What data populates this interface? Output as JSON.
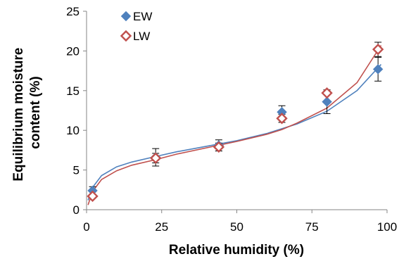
{
  "chart_data": {
    "type": "scatter",
    "xlabel": "Relative humidity (%)",
    "ylabel_lines": [
      "Equilibrium moisture",
      "content (%)"
    ],
    "xlim": [
      0,
      100
    ],
    "ylim": [
      0,
      25
    ],
    "x_ticks": [
      0,
      25,
      50,
      75,
      100
    ],
    "y_ticks": [
      0,
      5,
      10,
      15,
      20,
      25
    ],
    "grid": false,
    "legend_position": "top-left",
    "series": [
      {
        "name": "EW",
        "marker": "filled-diamond",
        "color": "#4f81bd",
        "points": [
          {
            "x": 2,
            "y": 2.4,
            "err": 0.5
          },
          {
            "x": 23,
            "y": 6.6,
            "err": 1.1
          },
          {
            "x": 44,
            "y": 8.1,
            "err": 0.7
          },
          {
            "x": 65,
            "y": 12.3,
            "err": 0.8
          },
          {
            "x": 80,
            "y": 13.6,
            "err": 1.5
          },
          {
            "x": 97,
            "y": 17.7,
            "err": 1.5
          }
        ],
        "fit": [
          [
            0.5,
            1.2
          ],
          [
            2,
            2.8
          ],
          [
            5,
            4.3
          ],
          [
            10,
            5.4
          ],
          [
            15,
            6.0
          ],
          [
            23,
            6.7
          ],
          [
            30,
            7.3
          ],
          [
            40,
            8.0
          ],
          [
            50,
            8.7
          ],
          [
            60,
            9.6
          ],
          [
            65,
            10.2
          ],
          [
            70,
            10.8
          ],
          [
            80,
            12.4
          ],
          [
            90,
            15.0
          ],
          [
            98,
            18.3
          ]
        ]
      },
      {
        "name": "LW",
        "marker": "open-diamond",
        "color": "#c0504d",
        "points": [
          {
            "x": 2,
            "y": 1.7,
            "err": 0
          },
          {
            "x": 23,
            "y": 6.5,
            "err": 0.6
          },
          {
            "x": 44,
            "y": 7.9,
            "err": 0.5
          },
          {
            "x": 65,
            "y": 11.5,
            "err": 0.5
          },
          {
            "x": 80,
            "y": 14.7,
            "err": 0
          },
          {
            "x": 97,
            "y": 20.2,
            "err": 0.9
          }
        ],
        "fit": [
          [
            0.5,
            0.6
          ],
          [
            2,
            2.3
          ],
          [
            5,
            3.8
          ],
          [
            10,
            4.9
          ],
          [
            15,
            5.6
          ],
          [
            23,
            6.3
          ],
          [
            30,
            7.0
          ],
          [
            40,
            7.8
          ],
          [
            50,
            8.6
          ],
          [
            60,
            9.5
          ],
          [
            65,
            10.1
          ],
          [
            70,
            10.9
          ],
          [
            80,
            12.8
          ],
          [
            90,
            16.0
          ],
          [
            98,
            20.7
          ]
        ]
      }
    ]
  }
}
